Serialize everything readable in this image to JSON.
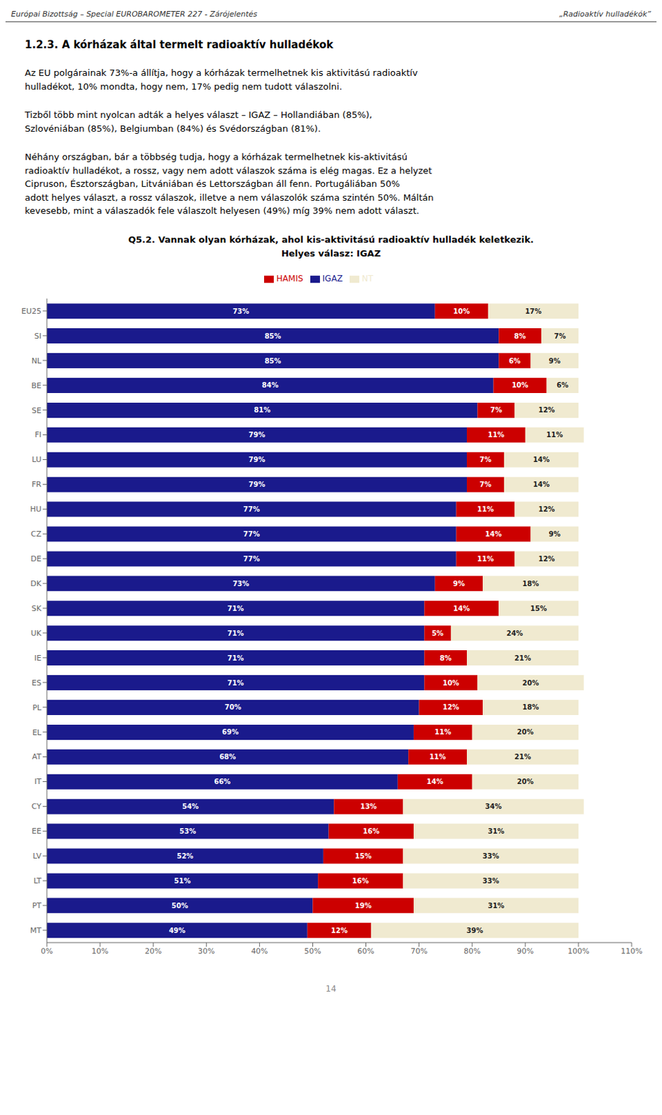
{
  "chart_data": {
    "type": "bar",
    "orientation": "horizontal",
    "stacked": true,
    "data_labels": true,
    "grid": false,
    "legend": "top",
    "title": "Q5.2. Vannak olyan kórházak, ahol kis-aktivitású radioaktív hulladék keletkezik.",
    "subtitle": "Helyes válasz: IGAZ",
    "annotations": [
      "Európai Bizottság – Special EUROBAROMETER 227 - Zárójelentés",
      "„Radioaktív hulladékók”",
      "1.2.3. A kórházak által termelt radioaktív hulladékok",
      "Az EU polgárainak 73%-a állítja, hogy a kórházak termelhetnek kis aktivitású radioaktív\nhulladékot, 10% mondta, hogy nem, 17% pedig nem tudott válaszolni.",
      "Tizből több mint nyolcan adták a helyes választ – IGAZ – Hollandiában (85%),\nSzlovéniában (85%), Belgiumban (84%) és Svédországban (81%).",
      "Néhány országban, bár a többség tudja, hogy a kórházak termelhetnek kis-aktivitású\nradioaktív hulladékot, a rossz, vagy nem adott válaszok száma is elég magas. Ez a helyzet\nCipruson, Észtországban, Litvániában és Lettországban áll fenn. Portugáliában 50%\nadott helyes választ, a rossz válaszok, illetve a nem válaszolók száma szintén 50%. Máltán\nkevesebb, mint a válaszadók fele válaszolt helyesen (49%) míg 39% nem adott választ.",
      "14"
    ],
    "categories": [
      "EU25",
      "SI",
      "NL",
      "BE",
      "SE",
      "FI",
      "LU",
      "FR",
      "HU",
      "CZ",
      "DE",
      "DK",
      "SK",
      "UK",
      "IE",
      "ES",
      "PL",
      "EL",
      "AT",
      "IT",
      "CY",
      "EE",
      "LV",
      "LT",
      "PT",
      "MT"
    ],
    "series": [
      {
        "name": "IGAZ",
        "color": "#1a1a8c",
        "values": [
          73,
          85,
          85,
          84,
          81,
          79,
          79,
          79,
          77,
          77,
          77,
          73,
          71,
          71,
          71,
          71,
          70,
          69,
          68,
          66,
          54,
          53,
          52,
          51,
          50,
          49
        ],
        "value_labels": [
          "73%",
          "85%",
          "85%",
          "84%",
          "81%",
          "79%",
          "79%",
          "79%",
          "77%",
          "77%",
          "77%",
          "73%",
          "71%",
          "71%",
          "71%",
          "71%",
          "70%",
          "69%",
          "68%",
          "66%",
          "54%",
          "53%",
          "52%",
          "51%",
          "50%",
          "49%"
        ]
      },
      {
        "name": "HAMIS",
        "color": "#cc0000",
        "values": [
          10,
          8,
          6,
          10,
          7,
          11,
          7,
          7,
          11,
          14,
          11,
          9,
          14,
          5,
          8,
          10,
          12,
          11,
          11,
          14,
          13,
          16,
          15,
          16,
          19,
          12
        ],
        "value_labels": [
          "10%",
          "8%",
          "6%",
          "10%",
          "7%",
          "11%",
          "7%",
          "7%",
          "11%",
          "14%",
          "11%",
          "9%",
          "14%",
          "5%",
          "8%",
          "10%",
          "12%",
          "11%",
          "11%",
          "14%",
          "13%",
          "16%",
          "15%",
          "16%",
          "19%",
          "12%"
        ]
      },
      {
        "name": "NT",
        "color": "#f0ead0",
        "values": [
          17,
          7,
          9,
          6,
          12,
          11,
          14,
          14,
          12,
          9,
          12,
          18,
          15,
          24,
          21,
          20,
          18,
          20,
          21,
          20,
          34,
          31,
          33,
          33,
          31,
          39
        ],
        "value_labels": [
          "17%",
          "7%",
          "9%",
          "6%",
          "12%",
          "11%",
          "14%",
          "14%",
          "12%",
          "9%",
          "12%",
          "18%",
          "15%",
          "24%",
          "21%",
          "20%",
          "18%",
          "20%",
          "21%",
          "20%",
          "34%",
          "31%",
          "33%",
          "33%",
          "31%",
          "39%"
        ]
      }
    ],
    "xlim": [
      0,
      110
    ],
    "xticks": [
      {
        "value": 0,
        "label": "0%"
      },
      {
        "value": 10,
        "label": "10%"
      },
      {
        "value": 20,
        "label": "20%"
      },
      {
        "value": 30,
        "label": "30%"
      },
      {
        "value": 40,
        "label": "40%"
      },
      {
        "value": 50,
        "label": "50%"
      },
      {
        "value": 60,
        "label": "60%"
      },
      {
        "value": 70,
        "label": "70%"
      },
      {
        "value": 80,
        "label": "80%"
      },
      {
        "value": 90,
        "label": "90%"
      },
      {
        "value": 100,
        "label": "100%"
      },
      {
        "value": 110,
        "label": "110%"
      }
    ]
  }
}
